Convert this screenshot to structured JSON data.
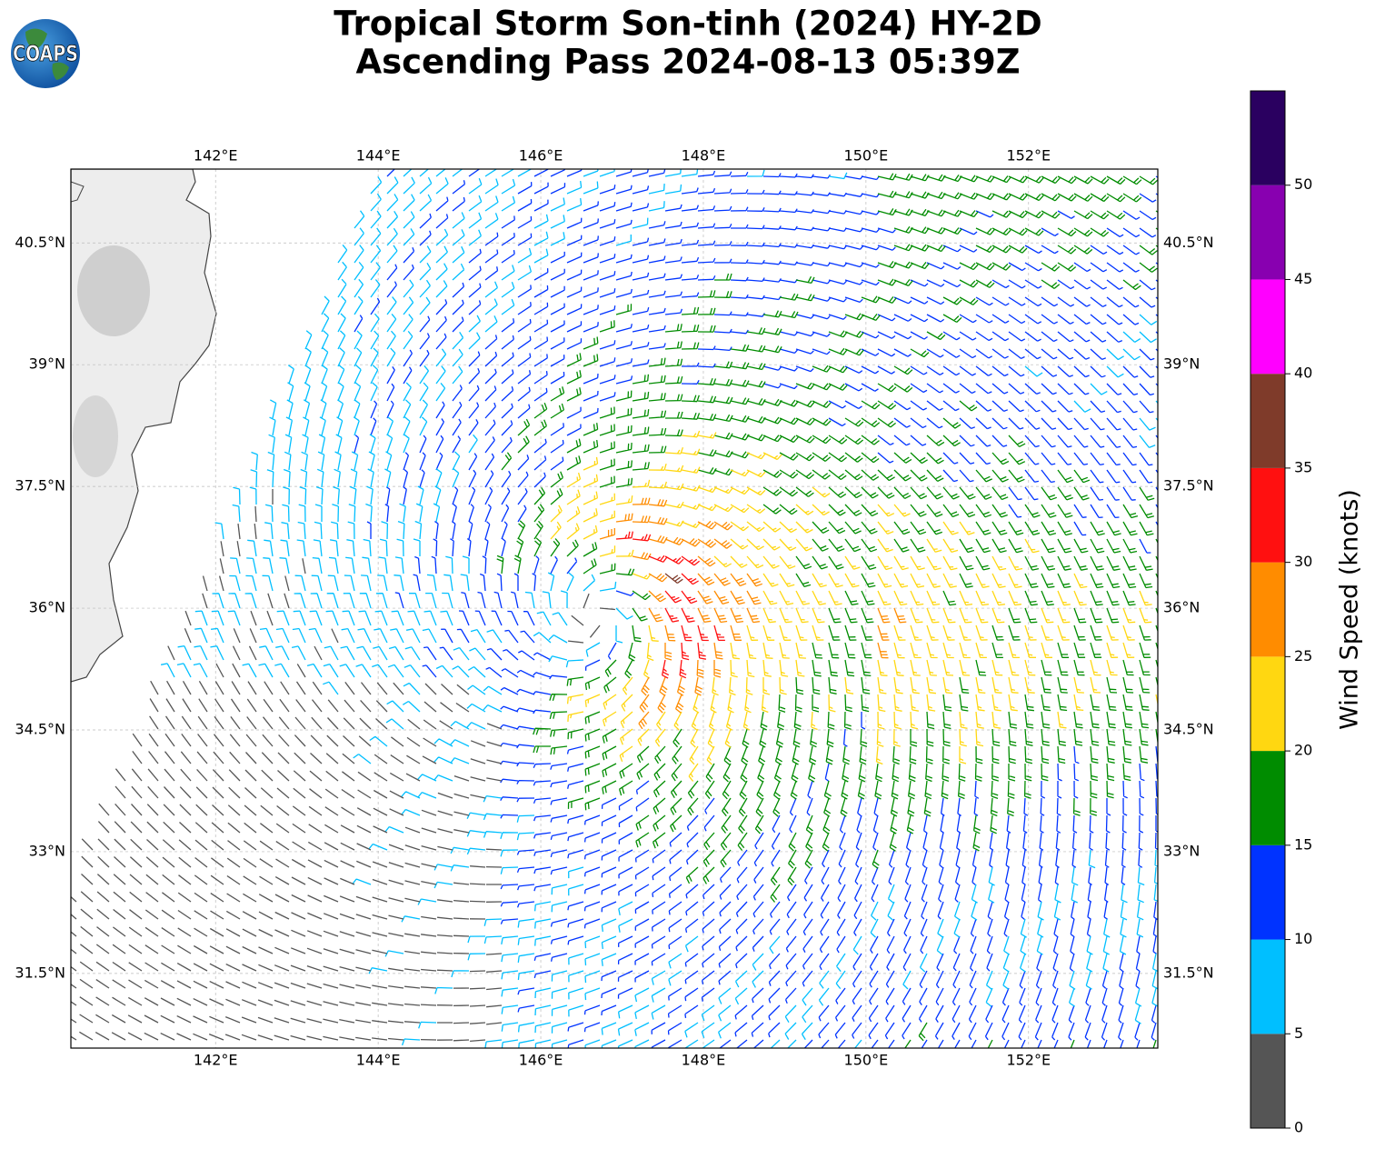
{
  "logo": "COAPS",
  "title": [
    "Tropical Storm Son-tinh (2024) HY-2D",
    "Ascending Pass 2024-08-13 05:39Z"
  ],
  "map": {
    "xlim": [
      140.22,
      153.59
    ],
    "ylim": [
      30.58,
      41.41
    ],
    "xticks": [
      {
        "value": 142,
        "label": "142°E"
      },
      {
        "value": 144,
        "label": "144°E"
      },
      {
        "value": 146,
        "label": "146°E"
      },
      {
        "value": 148,
        "label": "148°E"
      },
      {
        "value": 150,
        "label": "150°E"
      },
      {
        "value": 152,
        "label": "152°E"
      }
    ],
    "yticks": [
      {
        "value": 31.5,
        "label": "31.5°N"
      },
      {
        "value": 33,
        "label": "33°N"
      },
      {
        "value": 34.5,
        "label": "34.5°N"
      },
      {
        "value": 36,
        "label": "36°N"
      },
      {
        "value": 37.5,
        "label": "37.5°N"
      },
      {
        "value": 39,
        "label": "39°N"
      },
      {
        "value": 40.5,
        "label": "40.5°N"
      }
    ],
    "grid": true
  },
  "colorbar": {
    "label": "Wind Speed (knots)",
    "lim": [
      0,
      55
    ],
    "ticks": [
      0,
      5,
      10,
      15,
      20,
      25,
      30,
      35,
      40,
      45,
      50
    ],
    "colors": [
      "#555555",
      "#00bfff",
      "#0033ff",
      "#008c00",
      "#ffd711",
      "#ff8c00",
      "#ff1010",
      "#7f3b2a",
      "#ff00ff",
      "#8800b0",
      "#2a0060"
    ]
  }
}
